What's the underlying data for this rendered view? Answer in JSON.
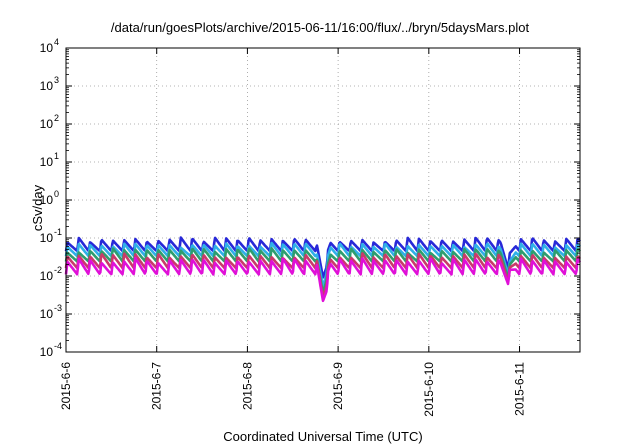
{
  "chart_data": {
    "type": "line",
    "title": "/data/run/goesPlots/archive/2015-06-11/16:00/flux/../bryn/5daysMars.plot",
    "xlabel": "Coordinated Universal Time (UTC)",
    "ylabel": "cSv/day",
    "yscale": "log",
    "ylim": [
      0.0001,
      10000
    ],
    "yticks": [
      {
        "value": -4,
        "label": "10"
      },
      {
        "value": -3,
        "label": "10"
      },
      {
        "value": -2,
        "label": "10"
      },
      {
        "value": -1,
        "label": "10"
      },
      {
        "value": 0,
        "label": "10"
      },
      {
        "value": 1,
        "label": "10"
      },
      {
        "value": 2,
        "label": "10"
      },
      {
        "value": 3,
        "label": "10"
      },
      {
        "value": 4,
        "label": "10"
      }
    ],
    "xlim": [
      "2015-06-06T00:00",
      "2015-06-11T16:00"
    ],
    "xticks": [
      "2015-6-6",
      "2015-6-7",
      "2015-6-8",
      "2015-6-9",
      "2015-6-10",
      "2015-6-11"
    ],
    "grid": true,
    "legend": "none",
    "sawtooth_period_hours": 3,
    "series": [
      {
        "color": "#2828d8",
        "peak": 0.09,
        "trough": 0.045
      },
      {
        "color": "#2fb0e8",
        "peak": 0.065,
        "trough": 0.033
      },
      {
        "color": "#2e9e6e",
        "peak": 0.048,
        "trough": 0.024
      },
      {
        "color": "#c93a6a",
        "peak": 0.035,
        "trough": 0.016
      },
      {
        "color": "#e010d8",
        "peak": 0.026,
        "trough": 0.011
      }
    ],
    "events": [
      {
        "time": "2015-06-08T20:00",
        "min": 0.0015
      },
      {
        "time": "2015-06-10T21:00",
        "min": 0.006
      }
    ]
  }
}
